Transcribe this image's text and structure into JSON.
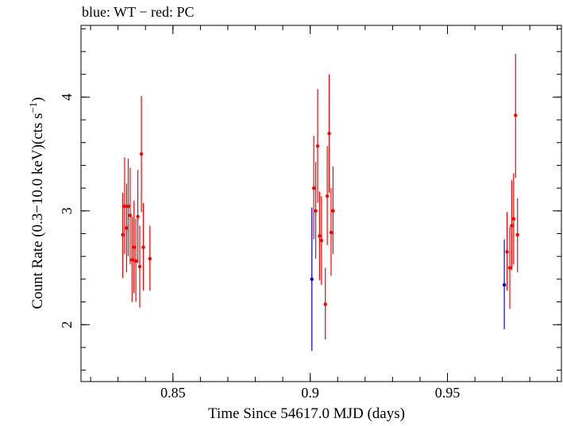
{
  "chart_data": {
    "type": "scatter",
    "title": "blue: WT − red: PC",
    "xlabel": "Time Since 54617.0 MJD (days)",
    "ylabel": "Count Rate (0.3−10.0 keV)(cts s",
    "ylabel_sup": "−1",
    "ylabel_close": ")",
    "xlim": [
      0.8165,
      0.9915
    ],
    "ylim": [
      1.5,
      4.63
    ],
    "xticks": [
      {
        "value": 0.85,
        "label": "0.85"
      },
      {
        "value": 0.9,
        "label": "0.9"
      },
      {
        "value": 0.95,
        "label": "0.95"
      }
    ],
    "yticks": [
      {
        "value": 2,
        "label": "2"
      },
      {
        "value": 3,
        "label": "3"
      },
      {
        "value": 4,
        "label": "4"
      }
    ],
    "x_minor_step": 0.01,
    "y_minor_step": 0.2,
    "grid": false,
    "series": [
      {
        "name": "WT",
        "color": "#0000ff",
        "points": [
          {
            "x": 0.9006,
            "y": 2.4,
            "lo": 1.77,
            "hi": 3.03
          },
          {
            "x": 0.9707,
            "y": 2.35,
            "lo": 1.96,
            "hi": 2.75
          }
        ]
      },
      {
        "name": "PC",
        "color": "#ff0000",
        "points": [
          {
            "x": 0.8317,
            "y": 2.79,
            "lo": 2.41,
            "hi": 3.16
          },
          {
            "x": 0.8324,
            "y": 3.04,
            "lo": 2.62,
            "hi": 3.47
          },
          {
            "x": 0.8331,
            "y": 2.85,
            "lo": 2.46,
            "hi": 3.24
          },
          {
            "x": 0.8337,
            "y": 3.04,
            "lo": 2.6,
            "hi": 3.46
          },
          {
            "x": 0.8344,
            "y": 2.96,
            "lo": 2.53,
            "hi": 3.38
          },
          {
            "x": 0.8351,
            "y": 2.57,
            "lo": 2.2,
            "hi": 2.95
          },
          {
            "x": 0.8358,
            "y": 2.68,
            "lo": 2.28,
            "hi": 3.09
          },
          {
            "x": 0.8365,
            "y": 2.56,
            "lo": 2.2,
            "hi": 2.93
          },
          {
            "x": 0.8372,
            "y": 2.95,
            "lo": 2.54,
            "hi": 3.36
          },
          {
            "x": 0.8379,
            "y": 2.51,
            "lo": 2.15,
            "hi": 2.87
          },
          {
            "x": 0.8385,
            "y": 3.5,
            "lo": 2.99,
            "hi": 4.01
          },
          {
            "x": 0.8392,
            "y": 2.68,
            "lo": 2.3,
            "hi": 3.07
          },
          {
            "x": 0.8416,
            "y": 2.58,
            "lo": 2.3,
            "hi": 2.87
          },
          {
            "x": 0.9013,
            "y": 3.2,
            "lo": 2.75,
            "hi": 3.66
          },
          {
            "x": 0.902,
            "y": 3.0,
            "lo": 2.58,
            "hi": 3.43
          },
          {
            "x": 0.9027,
            "y": 3.57,
            "lo": 3.07,
            "hi": 4.07
          },
          {
            "x": 0.9034,
            "y": 2.78,
            "lo": 2.39,
            "hi": 3.17
          },
          {
            "x": 0.9041,
            "y": 2.74,
            "lo": 2.35,
            "hi": 3.13
          },
          {
            "x": 0.9055,
            "y": 2.18,
            "lo": 1.87,
            "hi": 2.5
          },
          {
            "x": 0.9062,
            "y": 3.13,
            "lo": 2.7,
            "hi": 3.57
          },
          {
            "x": 0.9069,
            "y": 3.68,
            "lo": 3.16,
            "hi": 4.2
          },
          {
            "x": 0.9076,
            "y": 2.81,
            "lo": 2.43,
            "hi": 3.2
          },
          {
            "x": 0.9083,
            "y": 3.0,
            "lo": 2.62,
            "hi": 3.39
          },
          {
            "x": 0.9717,
            "y": 2.64,
            "lo": 2.3,
            "hi": 2.99
          },
          {
            "x": 0.9727,
            "y": 2.5,
            "lo": 2.14,
            "hi": 2.86
          },
          {
            "x": 0.9734,
            "y": 2.87,
            "lo": 2.48,
            "hi": 3.27
          },
          {
            "x": 0.9741,
            "y": 2.93,
            "lo": 2.53,
            "hi": 3.33
          },
          {
            "x": 0.9748,
            "y": 3.84,
            "lo": 3.29,
            "hi": 4.38
          },
          {
            "x": 0.9755,
            "y": 2.79,
            "lo": 2.46,
            "hi": 3.11
          }
        ]
      }
    ]
  }
}
